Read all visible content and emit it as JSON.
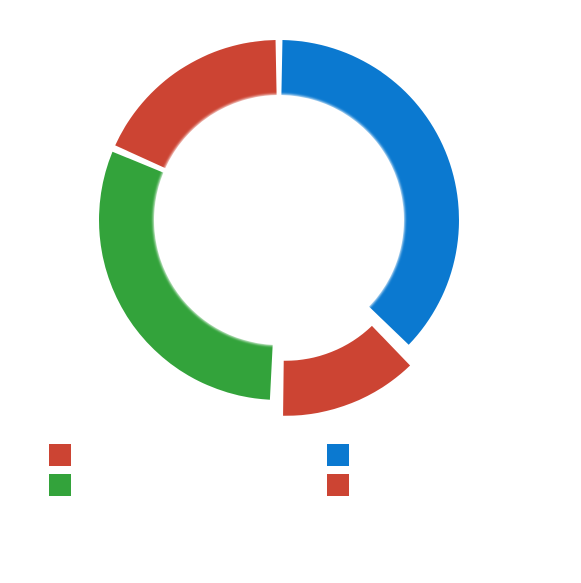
{
  "chart_data": {
    "type": "pie",
    "variant": "donut",
    "title": "",
    "slices": [
      {
        "label": "",
        "value": 37.5,
        "color": "#0b79d0"
      },
      {
        "label": "",
        "value": 13.0,
        "color": "#cc4433"
      },
      {
        "label": "",
        "value": 31.0,
        "color": "#33a33b"
      },
      {
        "label": "",
        "value": 18.5,
        "color": "#cc4433"
      }
    ],
    "exploded_slices": [
      1
    ],
    "legend": {
      "placement": "bottom",
      "columns": 2,
      "entries": [
        {
          "label": "",
          "color": "#cc4433"
        },
        {
          "label": "",
          "color": "#0b79d0"
        },
        {
          "label": "",
          "color": "#33a33b"
        },
        {
          "label": "",
          "color": "#cc4433"
        }
      ]
    }
  }
}
